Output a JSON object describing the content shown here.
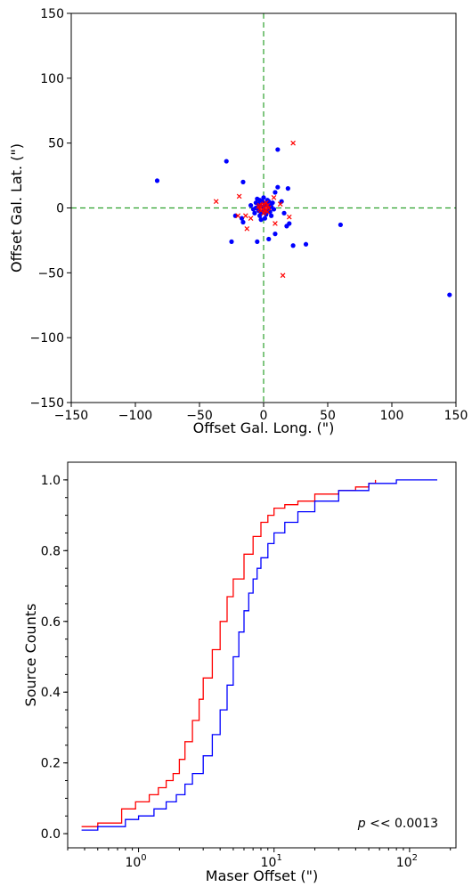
{
  "chart_data": [
    {
      "type": "scatter",
      "xlabel": "Offset Gal. Long. (\")",
      "ylabel": "Offset Gal. Lat. (\")",
      "xlim": [
        -150,
        150
      ],
      "ylim": [
        -150,
        150
      ],
      "xticks": [
        "−150",
        "−100",
        "−50",
        "0",
        "50",
        "100",
        "150"
      ],
      "yticks": [
        "−150",
        "−100",
        "−50",
        "0",
        "50",
        "100",
        "150"
      ],
      "xtick_values": [
        -150,
        -100,
        -50,
        0,
        50,
        100,
        150
      ],
      "ytick_values": [
        -150,
        -100,
        -50,
        0,
        50,
        100,
        150
      ],
      "reference_lines": {
        "x": 0,
        "y": 0,
        "color": "#2ca02c",
        "style": "dashed"
      },
      "series": [
        {
          "marker": "dot",
          "color": "#0000ff",
          "points": [
            [
              -83,
              21
            ],
            [
              -29,
              36
            ],
            [
              -16,
              20
            ],
            [
              -25,
              -26
            ],
            [
              -22,
              -6
            ],
            [
              -17,
              -8
            ],
            [
              -16,
              -11
            ],
            [
              -5,
              -26
            ],
            [
              -2,
              -9
            ],
            [
              4,
              -24
            ],
            [
              9,
              -20
            ],
            [
              11,
              45
            ],
            [
              11,
              16
            ],
            [
              9,
              12
            ],
            [
              14,
              5
            ],
            [
              16,
              -4
            ],
            [
              19,
              15
            ],
            [
              18,
              -14
            ],
            [
              20,
              -12
            ],
            [
              23,
              -29
            ],
            [
              33,
              -28
            ],
            [
              60,
              -13
            ],
            [
              145,
              -67
            ],
            [
              -10,
              2
            ],
            [
              -8,
              -1
            ],
            [
              -6,
              4
            ],
            [
              -4,
              -2
            ],
            [
              -3,
              6
            ],
            [
              -2,
              1
            ],
            [
              -1,
              -3
            ],
            [
              0,
              8
            ],
            [
              1,
              3
            ],
            [
              2,
              -5
            ],
            [
              3,
              6
            ],
            [
              4,
              -1
            ],
            [
              5,
              2
            ],
            [
              6,
              -6
            ],
            [
              7,
              4
            ],
            [
              8,
              -1
            ],
            [
              -7,
              -4
            ],
            [
              -5,
              7
            ],
            [
              -1,
              5
            ],
            [
              2,
              -2
            ],
            [
              3,
              2
            ],
            [
              -3,
              -6
            ],
            [
              -4,
              3
            ],
            [
              1,
              -8
            ],
            [
              6,
              1
            ],
            [
              -2,
              -4
            ],
            [
              0,
              0
            ],
            [
              5,
              -3
            ],
            [
              -6,
              0
            ],
            [
              4,
              5
            ]
          ]
        },
        {
          "marker": "x",
          "color": "#ff0000",
          "points": [
            [
              23,
              50
            ],
            [
              -37,
              5
            ],
            [
              -19,
              9
            ],
            [
              -20,
              -6
            ],
            [
              -14,
              -6
            ],
            [
              -13,
              -16
            ],
            [
              -10,
              -8
            ],
            [
              8,
              8
            ],
            [
              13,
              3
            ],
            [
              20,
              -7
            ],
            [
              15,
              -52
            ],
            [
              9,
              -12
            ],
            [
              -3,
              2
            ],
            [
              -1,
              -1
            ],
            [
              0,
              3
            ],
            [
              1,
              -2
            ],
            [
              2,
              1
            ],
            [
              3,
              -3
            ],
            [
              -2,
              -2
            ],
            [
              4,
              0
            ],
            [
              -4,
              1
            ],
            [
              0,
              -4
            ],
            [
              2,
              4
            ],
            [
              -1,
              2
            ],
            [
              1,
              0
            ],
            [
              3,
              2
            ],
            [
              -3,
              -1
            ]
          ]
        }
      ]
    },
    {
      "type": "line",
      "xlabel": "Maser Offset (\")",
      "ylabel": "Source Counts",
      "xscale": "log",
      "xlim": [
        0.3,
        220
      ],
      "ylim": [
        -0.04,
        1.05
      ],
      "xticks": [
        {
          "value": 1,
          "base": "10",
          "exp": "0"
        },
        {
          "value": 10,
          "base": "10",
          "exp": "1"
        },
        {
          "value": 100,
          "base": "10",
          "exp": "2"
        }
      ],
      "yticks": [
        "0.0",
        "0.2",
        "0.4",
        "0.6",
        "0.8",
        "1.0"
      ],
      "ytick_values": [
        0.0,
        0.2,
        0.4,
        0.6,
        0.8,
        1.0
      ],
      "annotation": {
        "prefix": "p",
        "text": " << 0.0013"
      },
      "series": [
        {
          "color": "#ff0000",
          "x": [
            0.38,
            0.5,
            0.75,
            0.95,
            1.2,
            1.4,
            1.6,
            1.8,
            2.0,
            2.2,
            2.5,
            2.8,
            3.0,
            3.5,
            4.0,
            4.5,
            5.0,
            6.0,
            7.0,
            8.0,
            9.0,
            10.0,
            12.0,
            15.0,
            20.0,
            30.0,
            40.0,
            50.0,
            56.0
          ],
          "y": [
            0.02,
            0.03,
            0.07,
            0.09,
            0.11,
            0.13,
            0.15,
            0.17,
            0.21,
            0.26,
            0.32,
            0.38,
            0.44,
            0.52,
            0.6,
            0.67,
            0.72,
            0.79,
            0.84,
            0.88,
            0.9,
            0.92,
            0.93,
            0.94,
            0.96,
            0.97,
            0.98,
            0.99,
            1.0
          ]
        },
        {
          "color": "#0000ff",
          "x": [
            0.38,
            0.5,
            0.8,
            1.0,
            1.3,
            1.6,
            1.9,
            2.2,
            2.5,
            3.0,
            3.5,
            4.0,
            4.5,
            5.0,
            5.5,
            6.0,
            6.5,
            7.0,
            7.5,
            8.0,
            9.0,
            10.0,
            12.0,
            15.0,
            20.0,
            30.0,
            50.0,
            80.0,
            160.0
          ],
          "y": [
            0.01,
            0.02,
            0.04,
            0.05,
            0.07,
            0.09,
            0.11,
            0.14,
            0.17,
            0.22,
            0.28,
            0.35,
            0.42,
            0.5,
            0.57,
            0.63,
            0.68,
            0.72,
            0.75,
            0.78,
            0.82,
            0.85,
            0.88,
            0.91,
            0.94,
            0.97,
            0.99,
            1.0,
            1.0
          ]
        }
      ]
    }
  ]
}
